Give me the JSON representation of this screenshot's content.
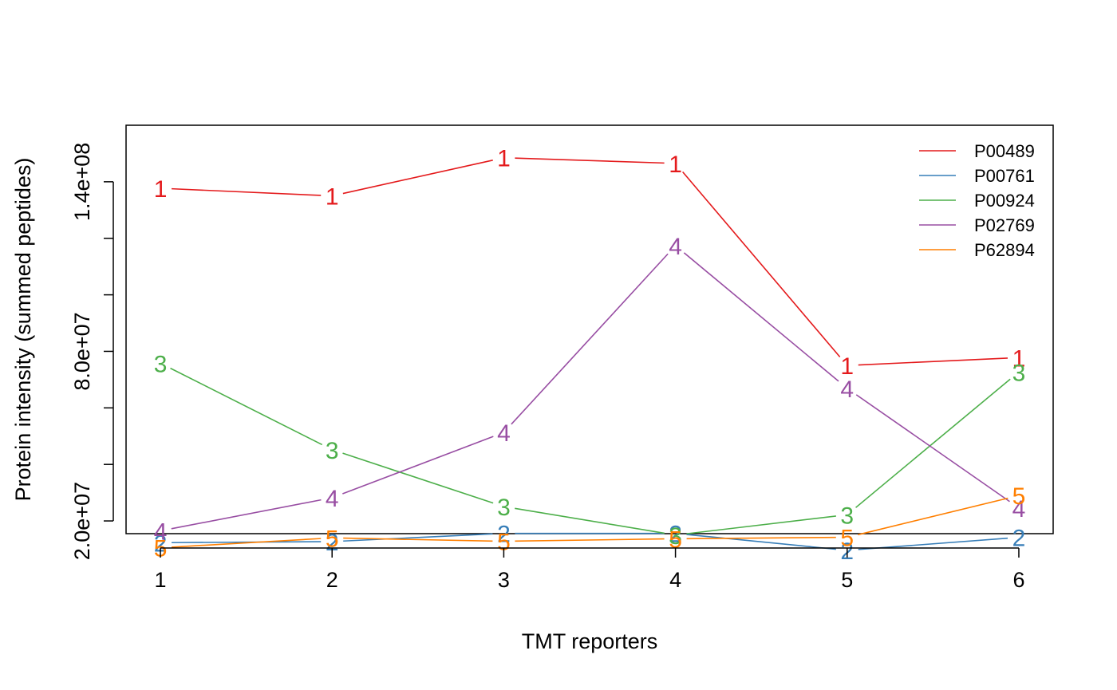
{
  "chart_data": {
    "type": "line",
    "title": "",
    "xlabel": "TMT reporters",
    "ylabel": "Protein intensity (summed peptides)",
    "x": [
      1,
      2,
      3,
      4,
      5,
      6
    ],
    "x_tick_labels": [
      "1",
      "2",
      "3",
      "4",
      "5",
      "6"
    ],
    "y_tick_labels": [
      "2.0e+07",
      "8.0e+07",
      "1.4e+08"
    ],
    "y_ticks": [
      20000000,
      40000000,
      60000000,
      80000000,
      100000000,
      120000000,
      140000000
    ],
    "y_tick_text_values": [
      20000000,
      80000000,
      140000000
    ],
    "xlim": [
      0.8,
      6.2
    ],
    "ylim": [
      15500000,
      160000000
    ],
    "grid": false,
    "legend_position": "top-right",
    "series": [
      {
        "name": "P00489",
        "marker": "1",
        "color": "#e41a1c",
        "values": [
          137700000,
          135000000,
          148500000,
          146500000,
          75000000,
          77800000
        ]
      },
      {
        "name": "P00761",
        "marker": "2",
        "color": "#377eb8",
        "values": [
          12300000,
          12700000,
          15600000,
          15600000,
          9600000,
          14200000
        ]
      },
      {
        "name": "P00924",
        "marker": "3",
        "color": "#4daf4a",
        "values": [
          75800000,
          45200000,
          25100000,
          15000000,
          22200000,
          72700000
        ]
      },
      {
        "name": "P02769",
        "marker": "4",
        "color": "#984ea3",
        "values": [
          16500000,
          28200000,
          51300000,
          117400000,
          66900000,
          24600000
        ]
      },
      {
        "name": "P62894",
        "marker": "5",
        "color": "#ff7f00",
        "values": [
          10500000,
          14000000,
          12800000,
          13700000,
          14200000,
          29000000
        ]
      }
    ]
  }
}
